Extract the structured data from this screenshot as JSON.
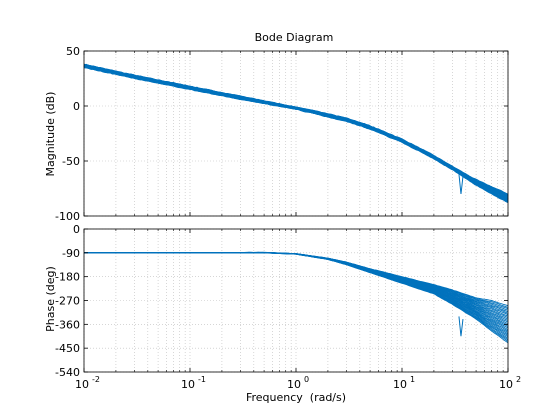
{
  "chart_data": [
    {
      "type": "line",
      "title": "Bode Diagram",
      "xlabel": "",
      "ylabel": "Magnitude (dB)",
      "xscale": "log",
      "xlim": [
        0.01,
        100
      ],
      "ylim": [
        -100,
        50
      ],
      "yticks": [
        -100,
        -50,
        0,
        50
      ],
      "xticks": [
        0.01,
        0.1,
        1,
        10,
        100
      ],
      "grid": true,
      "series_color": "#0072BD",
      "series": [
        {
          "x": [
            0.01,
            0.03,
            0.1,
            0.3,
            1,
            2,
            3,
            5,
            10,
            20,
            30,
            50,
            100
          ],
          "y": [
            38,
            28,
            18,
            9,
            -1,
            -7,
            -11,
            -18,
            -30,
            -45,
            -55,
            -67,
            -80
          ]
        },
        {
          "x": [
            0.01,
            0.03,
            0.1,
            0.3,
            1,
            2,
            3,
            5,
            10,
            20,
            30,
            50,
            100
          ],
          "y": [
            35,
            25,
            15,
            6,
            -3,
            -10,
            -14,
            -21,
            -33,
            -48,
            -58,
            -72,
            -88
          ]
        }
      ],
      "annotations": [
        {
          "x": 36,
          "y": -80,
          "text": ""
        }
      ]
    },
    {
      "type": "line",
      "title": "",
      "xlabel": "Frequency  (rad/s)",
      "ylabel": "Phase (deg)",
      "xscale": "log",
      "xlim": [
        0.01,
        100
      ],
      "ylim": [
        -540,
        0
      ],
      "yticks": [
        -540,
        -450,
        -360,
        -270,
        -180,
        -90,
        0
      ],
      "xticks": [
        0.01,
        0.1,
        1,
        10,
        100
      ],
      "x_tick_labels": [
        "10",
        "10",
        "10",
        "10",
        "10"
      ],
      "x_tick_exponents": [
        "-2",
        "-1",
        "0",
        "1",
        "2"
      ],
      "grid": true,
      "series_color": "#0072BD",
      "series": [
        {
          "x": [
            0.01,
            0.1,
            0.5,
            1,
            2,
            3,
            5,
            10,
            20,
            30,
            50,
            70,
            100
          ],
          "y": [
            -90,
            -90,
            -88,
            -93,
            -110,
            -125,
            -150,
            -180,
            -210,
            -230,
            -260,
            -270,
            -290
          ]
        },
        {
          "x": [
            0.01,
            0.1,
            0.5,
            1,
            2,
            3,
            5,
            10,
            20,
            30,
            50,
            70,
            100
          ],
          "y": [
            -90,
            -90,
            -90,
            -95,
            -115,
            -135,
            -165,
            -205,
            -245,
            -285,
            -340,
            -385,
            -430
          ]
        }
      ]
    }
  ]
}
